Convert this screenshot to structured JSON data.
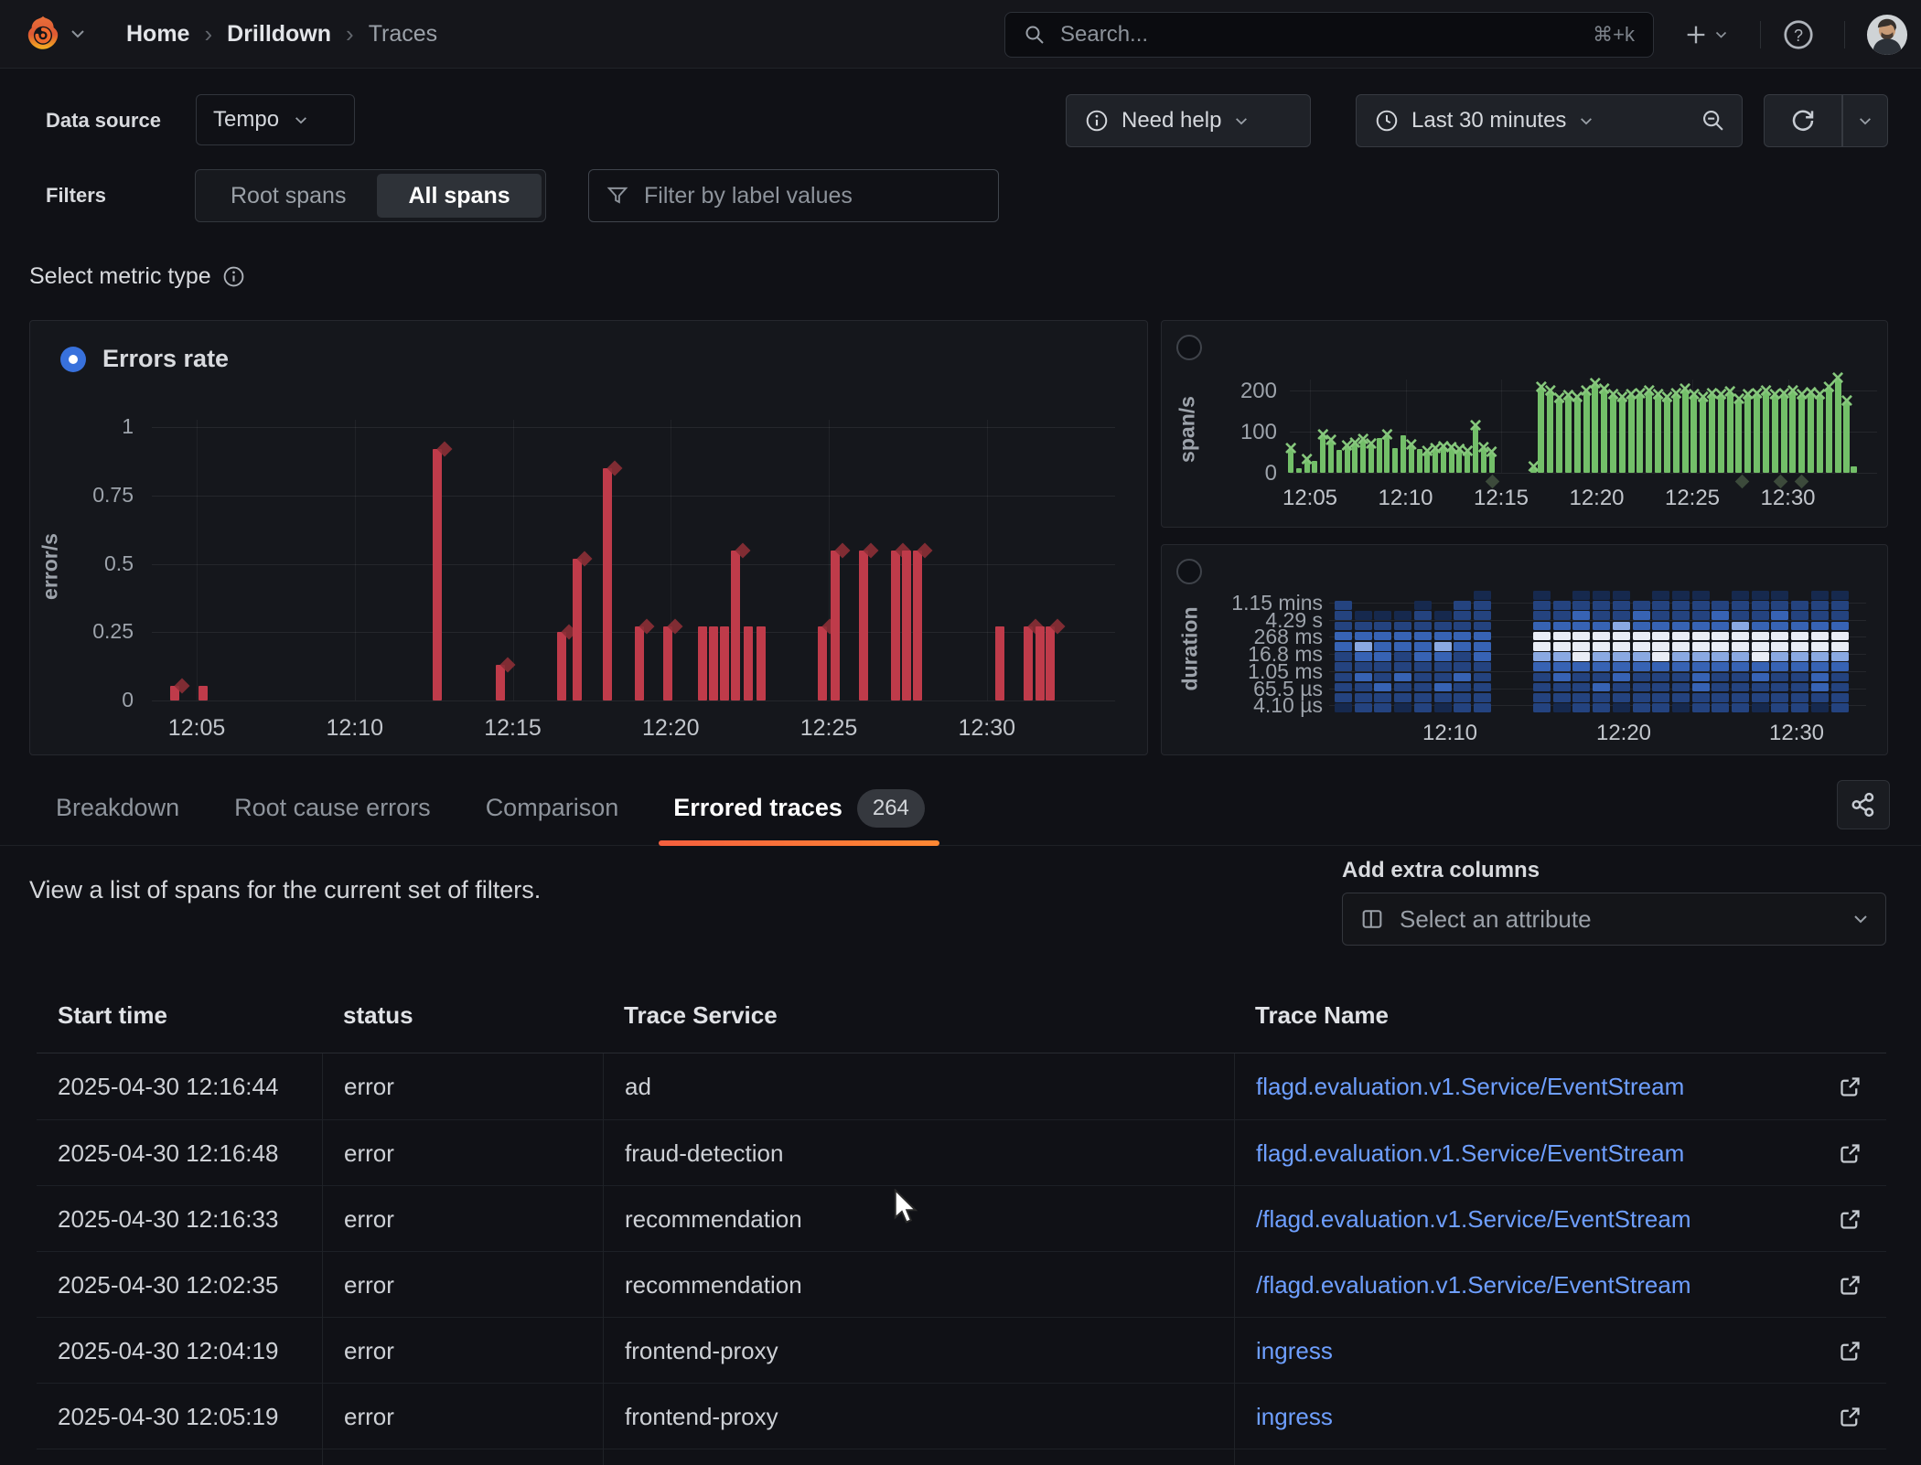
{
  "header": {
    "breadcrumb": [
      "Home",
      "Drilldown",
      "Traces"
    ],
    "search_placeholder": "Search...",
    "search_shortcut": "⌘+k"
  },
  "toolbar": {
    "data_source_label": "Data source",
    "data_source_value": "Tempo",
    "need_help_label": "Need help",
    "time_range_label": "Last 30 minutes",
    "filters_label": "Filters",
    "segments": [
      "Root spans",
      "All spans"
    ],
    "active_segment": "All spans",
    "filter_placeholder": "Filter by label values",
    "select_metric_label": "Select metric type"
  },
  "icons": {
    "search": "magnifier",
    "add": "plus-chevron",
    "help": "question-circle",
    "profile": "avatar-photo",
    "info": "info-circle",
    "clock": "clock",
    "zoom_out": "magnifier-minus",
    "refresh": "circular-sync-arrows",
    "filter": "funnel",
    "columns": "table-columns",
    "share": "share-nodes",
    "external_link": "box-arrow",
    "dropdown": "chevron-down"
  },
  "colors": {
    "error_red": "#bf3b4a",
    "error_marker": "#8c2f36",
    "span_green": "#73bf69",
    "span_marker": "#86c87c",
    "link_blue": "#6e9fff",
    "radio_blue": "#3871dc",
    "tab_underline": "#f55f3e"
  },
  "chart_data": [
    {
      "id": "errors-rate",
      "type": "bar",
      "title": "Errors rate",
      "ylabel": "error/s",
      "y_ticks": [
        0,
        0.25,
        0.5,
        0.75,
        1
      ],
      "ylim": [
        0,
        1.05
      ],
      "x_ticks": [
        "12:05",
        "12:10",
        "12:15",
        "12:20",
        "12:25",
        "12:30"
      ],
      "grid": true,
      "bar_color": "#bf3b4a",
      "marker_color": "#8c2f36",
      "bars": [
        [
          4.3,
          0.055,
          1
        ],
        [
          5.2,
          0.055,
          0
        ],
        [
          12.6,
          0.92,
          1
        ],
        [
          14.6,
          0.13,
          1
        ],
        [
          16.55,
          0.25,
          1
        ],
        [
          17.05,
          0.52,
          1
        ],
        [
          18.0,
          0.85,
          1
        ],
        [
          19.0,
          0.27,
          1
        ],
        [
          19.9,
          0.27,
          1
        ],
        [
          21.0,
          0.27,
          0
        ],
        [
          21.35,
          0.27,
          0
        ],
        [
          21.7,
          0.27,
          0
        ],
        [
          22.05,
          0.55,
          1
        ],
        [
          22.45,
          0.27,
          0
        ],
        [
          22.85,
          0.27,
          0
        ],
        [
          24.8,
          0.27,
          1
        ],
        [
          25.2,
          0.55,
          1
        ],
        [
          26.1,
          0.55,
          1
        ],
        [
          27.1,
          0.55,
          1
        ],
        [
          27.45,
          0.55,
          0
        ],
        [
          27.8,
          0.55,
          1
        ],
        [
          30.4,
          0.27,
          0
        ],
        [
          31.3,
          0.27,
          1
        ],
        [
          31.7,
          0.27,
          0
        ],
        [
          32.0,
          0.27,
          1
        ]
      ]
    },
    {
      "id": "span-rate",
      "type": "bar",
      "ylabel": "span/s",
      "y_ticks": [
        0,
        100,
        200
      ],
      "ylim": [
        0,
        240
      ],
      "x_ticks": [
        "12:05",
        "12:10",
        "12:15",
        "12:20",
        "12:25",
        "12:30"
      ],
      "grid": true,
      "bar_color": "#73bf69",
      "marker_color": "#86c87c",
      "below_markers": [
        14.5,
        27.6,
        29.6,
        30.7
      ],
      "bars": [
        [
          4.0,
          55,
          1
        ],
        [
          4.42,
          12,
          0
        ],
        [
          4.84,
          30,
          1
        ],
        [
          5.26,
          28,
          0
        ],
        [
          5.68,
          88,
          1
        ],
        [
          6.1,
          75,
          1
        ],
        [
          6.52,
          55,
          0
        ],
        [
          6.94,
          62,
          1
        ],
        [
          7.36,
          70,
          1
        ],
        [
          7.78,
          78,
          1
        ],
        [
          8.2,
          66,
          1
        ],
        [
          8.62,
          84,
          0
        ],
        [
          9.04,
          88,
          1
        ],
        [
          9.46,
          60,
          0
        ],
        [
          9.88,
          92,
          0
        ],
        [
          10.3,
          64,
          1
        ],
        [
          10.72,
          58,
          0
        ],
        [
          11.14,
          50,
          1
        ],
        [
          11.56,
          55,
          1
        ],
        [
          11.98,
          60,
          1
        ],
        [
          12.4,
          58,
          1
        ],
        [
          12.82,
          54,
          1
        ],
        [
          13.24,
          50,
          1
        ],
        [
          13.66,
          112,
          1
        ],
        [
          14.08,
          58,
          1
        ],
        [
          14.5,
          46,
          1
        ],
        [
          16.7,
          12,
          1
        ],
        [
          17.1,
          205,
          1
        ],
        [
          17.57,
          195,
          1
        ],
        [
          18.04,
          178,
          1
        ],
        [
          18.51,
          185,
          1
        ],
        [
          18.98,
          180,
          1
        ],
        [
          19.45,
          196,
          1
        ],
        [
          19.92,
          214,
          1
        ],
        [
          20.39,
          200,
          1
        ],
        [
          20.86,
          186,
          1
        ],
        [
          21.33,
          180,
          1
        ],
        [
          21.8,
          186,
          1
        ],
        [
          22.27,
          190,
          1
        ],
        [
          22.74,
          196,
          1
        ],
        [
          23.21,
          186,
          1
        ],
        [
          23.68,
          180,
          1
        ],
        [
          24.15,
          190,
          1
        ],
        [
          24.62,
          200,
          1
        ],
        [
          25.09,
          186,
          1
        ],
        [
          25.56,
          180,
          1
        ],
        [
          26.03,
          190,
          1
        ],
        [
          26.5,
          186,
          1
        ],
        [
          26.97,
          194,
          1
        ],
        [
          27.44,
          176,
          1
        ],
        [
          27.91,
          186,
          1
        ],
        [
          28.38,
          190,
          1
        ],
        [
          28.85,
          196,
          1
        ],
        [
          29.32,
          186,
          1
        ],
        [
          29.79,
          190,
          1
        ],
        [
          30.26,
          196,
          1
        ],
        [
          30.73,
          186,
          1
        ],
        [
          31.2,
          192,
          1
        ],
        [
          31.67,
          186,
          1
        ],
        [
          32.14,
          205,
          1
        ],
        [
          32.61,
          226,
          1
        ],
        [
          33.08,
          172,
          1
        ],
        [
          33.45,
          15,
          0
        ]
      ]
    },
    {
      "id": "duration",
      "type": "heatmap",
      "ylabel": "duration",
      "y_tick_labels": [
        "1.15 mins",
        "4.29 s",
        "268 ms",
        "16.8 ms",
        "1.05 ms",
        "65.5 µs",
        "4.10 µs"
      ],
      "x_ticks": [
        "12:10",
        "12:20",
        "12:30"
      ],
      "palette": [
        "transparent",
        "#16294e",
        "#24437f",
        "#3763b4",
        "#8aa9e2",
        "#e9edf6"
      ],
      "rows": [
        "00000001001011101110111011",
        "20001022002222222222222222",
        "21112122002232232223223222",
        "22222222003333433333433333",
        "33333333005555555555555555",
        "34333433005555555555555555",
        "23323323004454445444454444",
        "22222222003333333333333333",
        "23232232002322322232232232",
        "22322322002223222232222232",
        "22222222002222222222222222",
        "12212122002122122122212212"
      ]
    }
  ],
  "tabs": {
    "items": [
      {
        "label": "Breakdown",
        "active": false
      },
      {
        "label": "Root cause errors",
        "active": false
      },
      {
        "label": "Comparison",
        "active": false
      },
      {
        "label": "Errored traces",
        "active": true,
        "badge": "264"
      }
    ]
  },
  "content": {
    "description": "View a list of spans for the current set of filters.",
    "add_columns_label": "Add extra columns",
    "attribute_placeholder": "Select an attribute"
  },
  "table": {
    "columns": [
      "Start time",
      "status",
      "Trace Service",
      "Trace Name"
    ],
    "rows": [
      [
        "2025-04-30 12:16:44",
        "error",
        "ad",
        "flagd.evaluation.v1.Service/EventStream"
      ],
      [
        "2025-04-30 12:16:48",
        "error",
        "fraud-detection",
        "flagd.evaluation.v1.Service/EventStream"
      ],
      [
        "2025-04-30 12:16:33",
        "error",
        "recommendation",
        "/flagd.evaluation.v1.Service/EventStream"
      ],
      [
        "2025-04-30 12:02:35",
        "error",
        "recommendation",
        "/flagd.evaluation.v1.Service/EventStream"
      ],
      [
        "2025-04-30 12:04:19",
        "error",
        "frontend-proxy",
        "ingress"
      ],
      [
        "2025-04-30 12:05:19",
        "error",
        "frontend-proxy",
        "ingress"
      ]
    ]
  }
}
